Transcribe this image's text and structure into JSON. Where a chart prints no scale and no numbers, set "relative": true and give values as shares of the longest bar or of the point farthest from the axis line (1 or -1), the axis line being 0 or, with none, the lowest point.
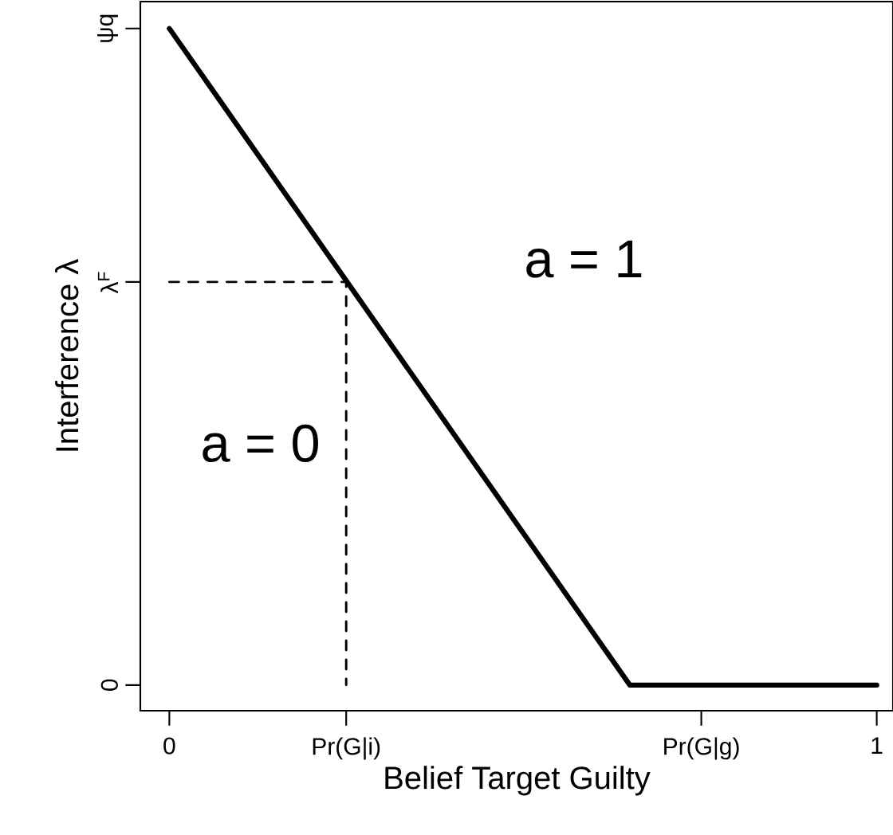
{
  "chart_data": {
    "type": "line",
    "xlabel": "Belief Target Guilty",
    "ylabel": "Interference λ",
    "xlim": [
      -0.041,
      1.023
    ],
    "relative": true,
    "xticks": [
      0,
      {
        "value": 0.25,
        "label": "Pr(G|i)"
      },
      {
        "value": 0.752,
        "label": "Pr(G|g)"
      },
      1
    ],
    "series": [
      {
        "color": "#000000",
        "line_style": "solid",
        "x": [
          0,
          0.651,
          1
        ],
        "values": [
          1,
          0,
          0
        ]
      },
      {
        "color": "#000000",
        "line_style": "dashed",
        "x": [
          0,
          0.25,
          0.25
        ],
        "values": [
          0.614,
          0.614,
          0
        ]
      }
    ],
    "annotations": [
      "a = 1",
      "a = 0",
      "0",
      "λ$^{F}$",
      "ψq"
    ]
  }
}
